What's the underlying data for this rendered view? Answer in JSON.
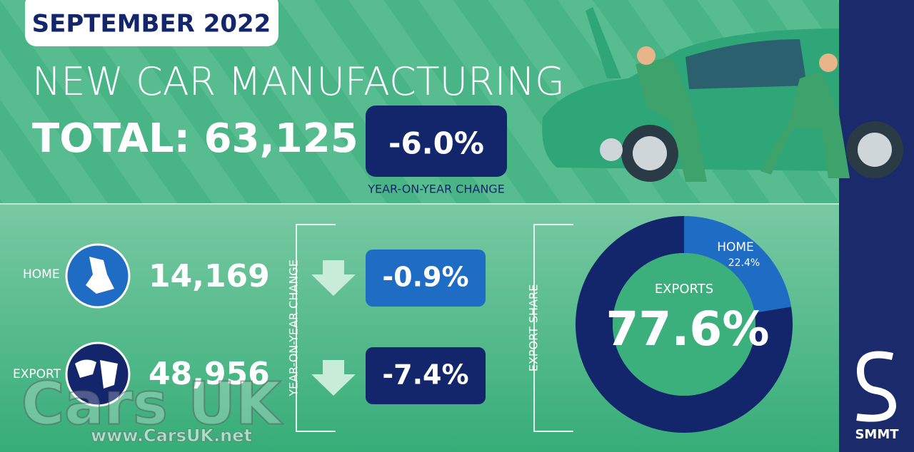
{
  "header": {
    "badge": "SEPTEMBER 2022",
    "title": "NEW CAR MANUFACTURING",
    "total": "TOTAL: 63,125",
    "change": "-6.0%",
    "change_label": "YEAR-ON-YEAR CHANGE"
  },
  "rows": [
    {
      "label": "HOME",
      "value": "14,169",
      "change": "-0.9%"
    },
    {
      "label": "EXPORT",
      "value": "48,956",
      "change": "-7.4%"
    }
  ],
  "rows_change_label": "YEAR-ON-YEAR CHANGE",
  "export_share": {
    "type": "pie",
    "label": "EXPORT SHARE",
    "categories": [
      "HOME",
      "EXPORTS"
    ],
    "values": [
      22.4,
      77.6
    ],
    "value_labels": [
      "22.4%",
      "77.6%"
    ],
    "colors": [
      "#1e6cc4",
      "#13266b"
    ]
  },
  "logo": "SMMT",
  "watermark": {
    "brand": "Cars UK",
    "url": "www.CarsUK.net"
  }
}
